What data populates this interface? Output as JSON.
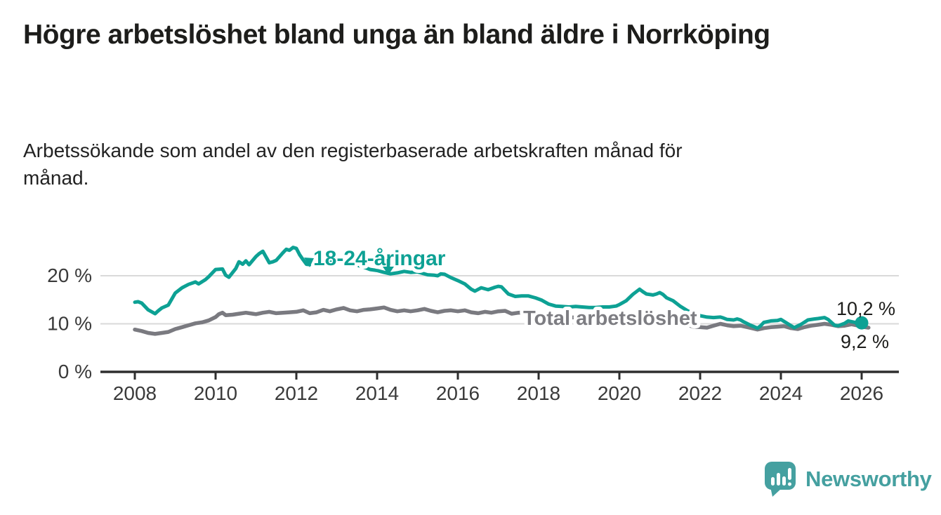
{
  "page": {
    "title": "Högre arbetslöshet bland unga än bland äldre i Norrköping",
    "subtitle": "Arbetssökande som andel av den registerbaserade arbetskraften månad för månad."
  },
  "branding": {
    "logo_text": "Newsworthy",
    "logo_icon": "speech-bubble-bar-chart-icon"
  },
  "colors": {
    "youth_line": "#0da194",
    "total_line": "#7a7a80",
    "axis": "#2e2e2e",
    "gridline": "#d9d9d9",
    "tick_text": "#3a3a3a",
    "value_text": "#1d1d1b",
    "total_label": "#7d7d82",
    "logo": "#45a0a0",
    "background": "#ffffff"
  },
  "chart_data": {
    "type": "line",
    "title": "Högre arbetslöshet bland unga än bland äldre i Norrköping",
    "subtitle": "Arbetssökande som andel av den registerbaserade arbetskraften månad för månad.",
    "xlabel": "",
    "ylabel": "",
    "unit": "%",
    "grid": "horizontal",
    "legend_position": "inline-labels",
    "x_axis": {
      "ticks": [
        2008,
        2010,
        2012,
        2014,
        2016,
        2018,
        2020,
        2022,
        2024,
        2026
      ],
      "range": [
        2007.15,
        2027.0
      ]
    },
    "y_axis": {
      "ticks": [
        0,
        10,
        20
      ],
      "tick_labels": [
        "0 %",
        "10 %",
        "20 %"
      ],
      "range": [
        0,
        27.7
      ]
    },
    "series": [
      {
        "name": "18-24-åringar",
        "color": "#0da194",
        "end_value": 10.2,
        "end_label": "10,2 %",
        "end_marker": "dot",
        "points": [
          [
            2008.0,
            14.5
          ],
          [
            2008.08,
            14.6
          ],
          [
            2008.17,
            14.3
          ],
          [
            2008.33,
            12.9
          ],
          [
            2008.5,
            12.1
          ],
          [
            2008.58,
            12.7
          ],
          [
            2008.67,
            13.3
          ],
          [
            2008.83,
            13.9
          ],
          [
            2009.0,
            16.4
          ],
          [
            2009.17,
            17.5
          ],
          [
            2009.33,
            18.2
          ],
          [
            2009.5,
            18.7
          ],
          [
            2009.58,
            18.3
          ],
          [
            2009.75,
            19.2
          ],
          [
            2009.83,
            19.8
          ],
          [
            2010.0,
            21.3
          ],
          [
            2010.17,
            21.4
          ],
          [
            2010.25,
            20.1
          ],
          [
            2010.33,
            19.7
          ],
          [
            2010.5,
            21.5
          ],
          [
            2010.58,
            22.9
          ],
          [
            2010.67,
            22.4
          ],
          [
            2010.75,
            23.1
          ],
          [
            2010.83,
            22.3
          ],
          [
            2011.0,
            24.0
          ],
          [
            2011.08,
            24.6
          ],
          [
            2011.17,
            25.1
          ],
          [
            2011.33,
            22.7
          ],
          [
            2011.42,
            22.9
          ],
          [
            2011.5,
            23.2
          ],
          [
            2011.67,
            24.8
          ],
          [
            2011.75,
            25.5
          ],
          [
            2011.83,
            25.3
          ],
          [
            2011.92,
            25.9
          ],
          [
            2012.0,
            25.7
          ],
          [
            2012.08,
            24.4
          ],
          [
            2012.17,
            23.3
          ],
          [
            2012.25,
            22.4
          ],
          [
            2012.33,
            22.3
          ],
          [
            2012.5,
            23.2
          ],
          [
            2012.67,
            23.6
          ],
          [
            2012.83,
            23.2
          ],
          [
            2013.0,
            23.4
          ],
          [
            2013.17,
            23.0
          ],
          [
            2013.33,
            22.6
          ],
          [
            2013.5,
            22.2
          ],
          [
            2013.67,
            21.8
          ],
          [
            2013.83,
            21.3
          ],
          [
            2014.0,
            21.1
          ],
          [
            2014.17,
            20.7
          ],
          [
            2014.33,
            20.4
          ],
          [
            2014.5,
            20.6
          ],
          [
            2014.67,
            20.9
          ],
          [
            2014.83,
            20.7
          ],
          [
            2015.0,
            20.8
          ],
          [
            2015.25,
            20.2
          ],
          [
            2015.42,
            20.1
          ],
          [
            2015.5,
            20.0
          ],
          [
            2015.58,
            20.4
          ],
          [
            2015.67,
            20.3
          ],
          [
            2015.83,
            19.6
          ],
          [
            2016.0,
            19.0
          ],
          [
            2016.17,
            18.3
          ],
          [
            2016.33,
            17.2
          ],
          [
            2016.42,
            16.8
          ],
          [
            2016.58,
            17.5
          ],
          [
            2016.75,
            17.1
          ],
          [
            2016.92,
            17.6
          ],
          [
            2017.0,
            17.8
          ],
          [
            2017.08,
            17.7
          ],
          [
            2017.25,
            16.2
          ],
          [
            2017.42,
            15.7
          ],
          [
            2017.58,
            15.8
          ],
          [
            2017.75,
            15.8
          ],
          [
            2017.92,
            15.4
          ],
          [
            2018.08,
            14.9
          ],
          [
            2018.25,
            14.1
          ],
          [
            2018.42,
            13.7
          ],
          [
            2018.58,
            13.6
          ],
          [
            2018.75,
            13.5
          ],
          [
            2018.92,
            13.6
          ],
          [
            2019.08,
            13.5
          ],
          [
            2019.25,
            13.4
          ],
          [
            2019.42,
            13.4
          ],
          [
            2019.58,
            13.5
          ],
          [
            2019.75,
            13.5
          ],
          [
            2019.92,
            13.7
          ],
          [
            2020.0,
            14.0
          ],
          [
            2020.17,
            14.8
          ],
          [
            2020.33,
            16.1
          ],
          [
            2020.5,
            17.2
          ],
          [
            2020.58,
            16.7
          ],
          [
            2020.67,
            16.2
          ],
          [
            2020.83,
            16.0
          ],
          [
            2020.92,
            16.2
          ],
          [
            2021.0,
            16.5
          ],
          [
            2021.08,
            16.1
          ],
          [
            2021.17,
            15.4
          ],
          [
            2021.33,
            14.8
          ],
          [
            2021.5,
            13.7
          ],
          [
            2021.67,
            12.8
          ],
          [
            2021.83,
            12.1
          ],
          [
            2022.0,
            11.7
          ],
          [
            2022.17,
            11.4
          ],
          [
            2022.33,
            11.3
          ],
          [
            2022.5,
            11.4
          ],
          [
            2022.58,
            11.2
          ],
          [
            2022.67,
            10.9
          ],
          [
            2022.83,
            10.8
          ],
          [
            2022.92,
            11.0
          ],
          [
            2023.0,
            10.8
          ],
          [
            2023.08,
            10.4
          ],
          [
            2023.25,
            9.7
          ],
          [
            2023.42,
            9.1
          ],
          [
            2023.5,
            9.6
          ],
          [
            2023.58,
            10.3
          ],
          [
            2023.75,
            10.6
          ],
          [
            2023.92,
            10.7
          ],
          [
            2024.0,
            10.9
          ],
          [
            2024.08,
            10.5
          ],
          [
            2024.25,
            9.6
          ],
          [
            2024.33,
            9.2
          ],
          [
            2024.5,
            9.9
          ],
          [
            2024.67,
            10.8
          ],
          [
            2024.83,
            11.0
          ],
          [
            2024.92,
            11.1
          ],
          [
            2025.08,
            11.3
          ],
          [
            2025.17,
            10.9
          ],
          [
            2025.33,
            9.7
          ],
          [
            2025.42,
            9.6
          ],
          [
            2025.58,
            10.1
          ],
          [
            2025.67,
            10.6
          ],
          [
            2025.83,
            10.3
          ],
          [
            2025.92,
            10.0
          ],
          [
            2026.0,
            10.2
          ]
        ]
      },
      {
        "name": "Total arbetslöshet",
        "color": "#7a7a80",
        "end_value": 9.2,
        "end_label": "9,2 %",
        "end_marker": "none",
        "points": [
          [
            2008.0,
            8.8
          ],
          [
            2008.17,
            8.5
          ],
          [
            2008.33,
            8.1
          ],
          [
            2008.5,
            7.9
          ],
          [
            2008.67,
            8.1
          ],
          [
            2008.83,
            8.3
          ],
          [
            2009.0,
            8.9
          ],
          [
            2009.17,
            9.3
          ],
          [
            2009.33,
            9.7
          ],
          [
            2009.5,
            10.1
          ],
          [
            2009.67,
            10.3
          ],
          [
            2009.83,
            10.7
          ],
          [
            2010.0,
            11.4
          ],
          [
            2010.08,
            12.0
          ],
          [
            2010.17,
            12.3
          ],
          [
            2010.25,
            11.8
          ],
          [
            2010.42,
            11.9
          ],
          [
            2010.58,
            12.1
          ],
          [
            2010.75,
            12.3
          ],
          [
            2010.92,
            12.1
          ],
          [
            2011.0,
            12.0
          ],
          [
            2011.17,
            12.3
          ],
          [
            2011.33,
            12.5
          ],
          [
            2011.5,
            12.2
          ],
          [
            2011.67,
            12.3
          ],
          [
            2011.83,
            12.4
          ],
          [
            2012.0,
            12.5
          ],
          [
            2012.17,
            12.8
          ],
          [
            2012.33,
            12.2
          ],
          [
            2012.5,
            12.4
          ],
          [
            2012.67,
            12.9
          ],
          [
            2012.83,
            12.6
          ],
          [
            2013.0,
            13.0
          ],
          [
            2013.17,
            13.3
          ],
          [
            2013.33,
            12.8
          ],
          [
            2013.5,
            12.6
          ],
          [
            2013.67,
            12.9
          ],
          [
            2013.83,
            13.0
          ],
          [
            2014.0,
            13.2
          ],
          [
            2014.17,
            13.4
          ],
          [
            2014.33,
            12.9
          ],
          [
            2014.5,
            12.6
          ],
          [
            2014.67,
            12.8
          ],
          [
            2014.83,
            12.6
          ],
          [
            2015.0,
            12.8
          ],
          [
            2015.17,
            13.1
          ],
          [
            2015.33,
            12.7
          ],
          [
            2015.5,
            12.4
          ],
          [
            2015.67,
            12.7
          ],
          [
            2015.83,
            12.8
          ],
          [
            2016.0,
            12.6
          ],
          [
            2016.17,
            12.8
          ],
          [
            2016.33,
            12.4
          ],
          [
            2016.5,
            12.2
          ],
          [
            2016.67,
            12.5
          ],
          [
            2016.83,
            12.3
          ],
          [
            2017.0,
            12.6
          ],
          [
            2017.17,
            12.7
          ],
          [
            2017.33,
            12.1
          ],
          [
            2017.5,
            12.3
          ],
          [
            2017.67,
            12.4
          ],
          [
            2017.83,
            12.3
          ],
          [
            2018.0,
            12.1
          ],
          [
            2018.25,
            11.9
          ],
          [
            2018.5,
            11.6
          ],
          [
            2018.75,
            11.4
          ],
          [
            2019.0,
            11.2
          ],
          [
            2019.25,
            11.1
          ],
          [
            2019.5,
            11.0
          ],
          [
            2019.75,
            11.1
          ],
          [
            2020.0,
            11.4
          ],
          [
            2020.25,
            11.9
          ],
          [
            2020.5,
            12.2
          ],
          [
            2020.75,
            11.9
          ],
          [
            2021.0,
            11.6
          ],
          [
            2021.25,
            11.0
          ],
          [
            2021.5,
            10.3
          ],
          [
            2021.67,
            9.8
          ],
          [
            2021.83,
            9.4
          ],
          [
            2022.0,
            9.3
          ],
          [
            2022.17,
            9.2
          ],
          [
            2022.33,
            9.6
          ],
          [
            2022.5,
            10.0
          ],
          [
            2022.67,
            9.7
          ],
          [
            2022.83,
            9.5
          ],
          [
            2023.0,
            9.6
          ],
          [
            2023.17,
            9.3
          ],
          [
            2023.33,
            9.0
          ],
          [
            2023.42,
            8.8
          ],
          [
            2023.58,
            9.1
          ],
          [
            2023.75,
            9.3
          ],
          [
            2023.92,
            9.4
          ],
          [
            2024.08,
            9.5
          ],
          [
            2024.25,
            9.1
          ],
          [
            2024.42,
            8.9
          ],
          [
            2024.58,
            9.3
          ],
          [
            2024.75,
            9.6
          ],
          [
            2024.92,
            9.8
          ],
          [
            2025.08,
            10.0
          ],
          [
            2025.25,
            9.8
          ],
          [
            2025.42,
            9.5
          ],
          [
            2025.58,
            9.6
          ],
          [
            2025.75,
            9.9
          ],
          [
            2025.92,
            9.6
          ],
          [
            2026.08,
            9.3
          ],
          [
            2026.17,
            9.2
          ]
        ]
      }
    ],
    "annotations": [
      {
        "type": "series-label",
        "text": "18-24-åringar",
        "arrow_targets_year": [
          2012.35,
          2014.35
        ]
      },
      {
        "type": "series-label",
        "text": "Total arbetslöshet",
        "arrow_targets_year": []
      },
      {
        "type": "value-label",
        "text": "10,2 %"
      },
      {
        "type": "value-label",
        "text": "9,2 %"
      }
    ]
  }
}
